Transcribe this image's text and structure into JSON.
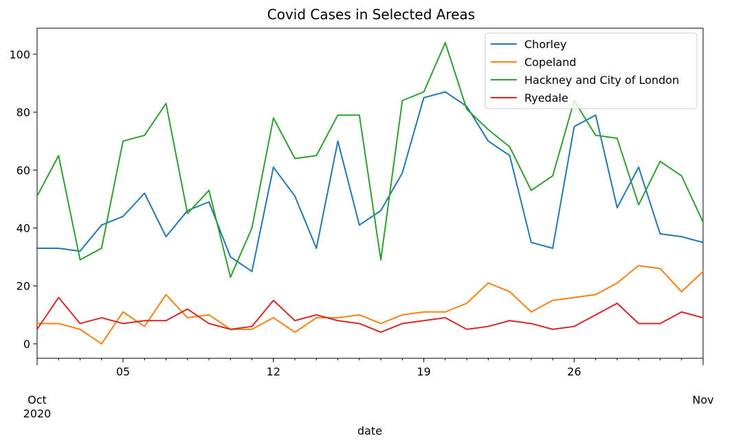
{
  "chart_data": {
    "type": "line",
    "title": "Covid Cases in Selected Areas",
    "xlabel": "date",
    "ylabel": "",
    "x": [
      "2020-10-01",
      "2020-10-02",
      "2020-10-03",
      "2020-10-04",
      "2020-10-05",
      "2020-10-06",
      "2020-10-07",
      "2020-10-08",
      "2020-10-09",
      "2020-10-10",
      "2020-10-11",
      "2020-10-12",
      "2020-10-13",
      "2020-10-14",
      "2020-10-15",
      "2020-10-16",
      "2020-10-17",
      "2020-10-18",
      "2020-10-19",
      "2020-10-20",
      "2020-10-21",
      "2020-10-22",
      "2020-10-23",
      "2020-10-24",
      "2020-10-25",
      "2020-10-26",
      "2020-10-27",
      "2020-10-28",
      "2020-10-29",
      "2020-10-30",
      "2020-10-31",
      "2020-11-01"
    ],
    "xlim": [
      "2020-10-01",
      "2020-11-01"
    ],
    "ylim": [
      -5,
      109
    ],
    "yticks": [
      0,
      20,
      40,
      60,
      80,
      100
    ],
    "xticks_minor": [
      {
        "date": "2020-10-05",
        "label": "05"
      },
      {
        "date": "2020-10-12",
        "label": "12"
      },
      {
        "date": "2020-10-19",
        "label": "19"
      },
      {
        "date": "2020-10-26",
        "label": "26"
      }
    ],
    "xticks_major": [
      {
        "date": "2020-10-01",
        "label": "Oct\n2020"
      },
      {
        "date": "2020-11-01",
        "label": "Nov"
      }
    ],
    "grid": false,
    "legend_position": "top-right",
    "series": [
      {
        "name": "Chorley",
        "color": "#1f77b4",
        "values": [
          33,
          33,
          32,
          41,
          44,
          52,
          37,
          46,
          49,
          30,
          25,
          61,
          51,
          33,
          70,
          41,
          46,
          59,
          85,
          87,
          82,
          70,
          65,
          35,
          33,
          75,
          79,
          47,
          61,
          38,
          37,
          35
        ]
      },
      {
        "name": "Copeland",
        "color": "#ff7f0e",
        "values": [
          7,
          7,
          5,
          0,
          11,
          6,
          17,
          9,
          10,
          5,
          5,
          9,
          4,
          9,
          9,
          10,
          7,
          10,
          11,
          11,
          14,
          21,
          18,
          11,
          15,
          16,
          17,
          21,
          27,
          26,
          18,
          25
        ]
      },
      {
        "name": "Hackney and City of London",
        "color": "#2ca02c",
        "values": [
          51,
          65,
          29,
          33,
          70,
          72,
          83,
          45,
          53,
          23,
          40,
          78,
          64,
          65,
          79,
          79,
          29,
          84,
          87,
          104,
          81,
          74,
          68,
          53,
          58,
          84,
          72,
          71,
          48,
          63,
          58,
          42
        ]
      },
      {
        "name": "Ryedale",
        "color": "#d62728",
        "values": [
          5,
          16,
          7,
          9,
          7,
          8,
          8,
          12,
          7,
          5,
          6,
          15,
          8,
          10,
          8,
          7,
          4,
          7,
          8,
          9,
          5,
          6,
          8,
          7,
          5,
          6,
          10,
          14,
          7,
          7,
          11,
          9
        ]
      }
    ]
  }
}
